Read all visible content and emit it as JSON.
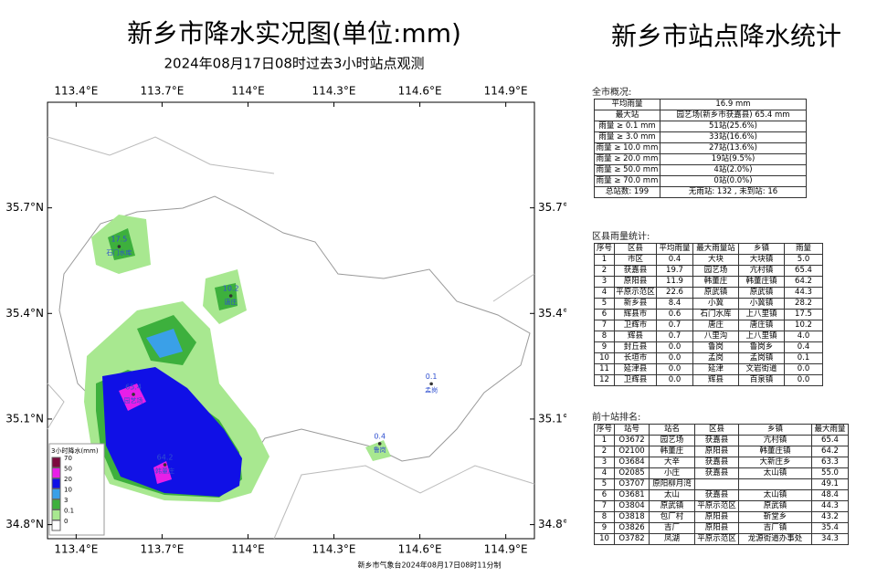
{
  "map": {
    "title": "新乡市降水实况图(单位:mm)",
    "subtitle": "2024年08月17日08时过去3小时站点观测",
    "xlim": [
      113.3,
      115.0
    ],
    "ylim": [
      34.76,
      36.0
    ],
    "xticks": [
      {
        "value": 113.4,
        "label": "113.4°E"
      },
      {
        "value": 113.7,
        "label": "113.7°E"
      },
      {
        "value": 114,
        "label": "114°E"
      },
      {
        "value": 114.3,
        "label": "114.3°E"
      },
      {
        "value": 114.6,
        "label": "114.6°E"
      },
      {
        "value": 114.9,
        "label": "114.9°E"
      }
    ],
    "yticks": [
      {
        "value": 35.7,
        "label": "35.7°N"
      },
      {
        "value": 35.4,
        "label": "35.4°N"
      },
      {
        "value": 35.1,
        "label": "35.1°N"
      },
      {
        "value": 34.8,
        "label": "34.8°N"
      }
    ],
    "legend": {
      "title": "3小时降水(mm)",
      "items": [
        {
          "label": "70",
          "color": "#7d0a3f"
        },
        {
          "label": "50",
          "color": "#e81ee8"
        },
        {
          "label": "20",
          "color": "#1010e6"
        },
        {
          "label": "10",
          "color": "#3aa0e8"
        },
        {
          "label": "3",
          "color": "#3db03d"
        },
        {
          "label": "0.1",
          "color": "#a8e890"
        },
        {
          "label": "0",
          "color": "#ffffff"
        }
      ]
    },
    "stations": [
      {
        "name": "园艺场",
        "value": "65.4",
        "lon": 113.6,
        "lat": 35.17
      },
      {
        "name": "韩董庄",
        "value": "64.2",
        "lon": 113.71,
        "lat": 34.97
      },
      {
        "name": "石门水库",
        "value": "17.5",
        "lon": 113.55,
        "lat": 35.59
      },
      {
        "name": "唐庄",
        "value": "10.2",
        "lon": 113.94,
        "lat": 35.45
      },
      {
        "name": "鲁岗",
        "value": "0.4",
        "lon": 114.46,
        "lat": 35.03
      },
      {
        "name": "孟岗",
        "value": "0.1",
        "lon": 114.64,
        "lat": 35.2
      }
    ],
    "footer": "新乡市气象台2024年08月17日08时11分制"
  },
  "stats": {
    "title": "新乡市站点降水统计",
    "overview": {
      "label": "全市概况:",
      "rows": [
        [
          "平均雨量",
          "16.9 mm"
        ],
        [
          "最大站",
          "园艺场(新乡市获嘉县) 65.4 mm"
        ],
        [
          "雨量 ≥ 0.1 mm",
          "51站(25.6%)"
        ],
        [
          "雨量 ≥ 3.0 mm",
          "33站(16.6%)"
        ],
        [
          "雨量 ≥ 10.0 mm",
          "27站(13.6%)"
        ],
        [
          "雨量 ≥ 20.0 mm",
          "19站(9.5%)"
        ],
        [
          "雨量 ≥ 50.0 mm",
          "4站(2.0%)"
        ],
        [
          "雨量 ≥ 70.0 mm",
          "0站(0.0%)"
        ],
        [
          "总站数: 199",
          "无雨站: 132 , 未到站: 16"
        ]
      ]
    },
    "county": {
      "label": "区县雨量统计:",
      "header": [
        "序号",
        "区县",
        "平均雨量",
        "最大雨量站",
        "乡镇",
        "雨量"
      ],
      "rows": [
        [
          "1",
          "市区",
          "0.4",
          "大块",
          "大块镇",
          "5.0"
        ],
        [
          "2",
          "获嘉县",
          "19.7",
          "园艺场",
          "亢村镇",
          "65.4"
        ],
        [
          "3",
          "原阳县",
          "11.9",
          "韩董庄",
          "韩董庄镇",
          "64.2"
        ],
        [
          "4",
          "平原示范区",
          "22.6",
          "原武镇",
          "原武镇",
          "44.3"
        ],
        [
          "5",
          "新乡县",
          "8.4",
          "小冀",
          "小冀镇",
          "28.2"
        ],
        [
          "6",
          "辉县市",
          "0.6",
          "石门水库",
          "上八里镇",
          "17.5"
        ],
        [
          "7",
          "卫辉市",
          "0.7",
          "唐庄",
          "唐庄镇",
          "10.2"
        ],
        [
          "8",
          "辉县",
          "0.7",
          "八里沟",
          "上八里镇",
          "4.0"
        ],
        [
          "9",
          "封丘县",
          "0.0",
          "鲁岗",
          "鲁岗乡",
          "0.4"
        ],
        [
          "10",
          "长垣市",
          "0.0",
          "孟岗",
          "孟岗镇",
          "0.1"
        ],
        [
          "11",
          "延津县",
          "0.0",
          "延津",
          "文岩街道",
          "0.0"
        ],
        [
          "12",
          "卫辉县",
          "0.0",
          "辉县",
          "百泉镇",
          "0.0"
        ]
      ]
    },
    "top10": {
      "label": "前十站排名:",
      "header": [
        "序号",
        "站号",
        "站名",
        "区县",
        "乡镇",
        "最大雨量"
      ],
      "rows": [
        [
          "1",
          "O3672",
          "园艺场",
          "获嘉县",
          "亢村镇",
          "65.4"
        ],
        [
          "2",
          "O2100",
          "韩董庄",
          "原阳县",
          "韩董庄镇",
          "64.2"
        ],
        [
          "3",
          "O3684",
          "大辛",
          "获嘉县",
          "大新庄乡",
          "63.3"
        ],
        [
          "4",
          "O2085",
          "小庄",
          "获嘉县",
          "太山镇",
          "55.0"
        ],
        [
          "5",
          "O3707",
          "原阳柳月湾",
          null,
          null,
          "49.1"
        ],
        [
          "6",
          "O3681",
          "太山",
          "获嘉县",
          "太山镇",
          "48.4"
        ],
        [
          "7",
          "O3804",
          "原武镇",
          "平原示范区",
          "原武镇",
          "44.3"
        ],
        [
          "8",
          "O3818",
          "包厂村",
          "原阳县",
          "靳堂乡",
          "43.2"
        ],
        [
          "9",
          "O3826",
          "吉厂",
          "原阳县",
          "吉厂镇",
          "35.4"
        ],
        [
          "10",
          "O3782",
          "凤湖",
          "平原示范区",
          "龙源街道办事处",
          "34.3"
        ]
      ]
    }
  }
}
